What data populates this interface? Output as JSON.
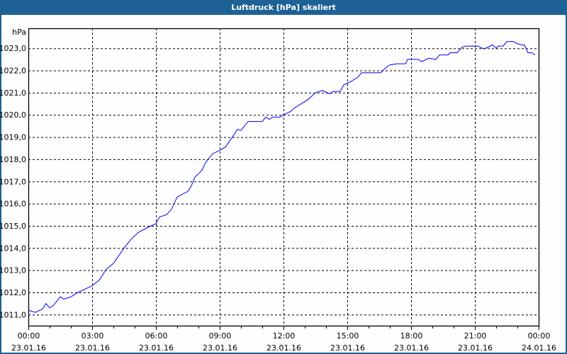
{
  "window": {
    "title": "Luftdruck [hPa] skaliert",
    "title_bg": "#1e6194"
  },
  "chart_data": {
    "type": "line",
    "title": "Luftdruck [hPa] skaliert",
    "ylabel": "hPa",
    "xlabel": "",
    "ylim": [
      1010.5,
      1023.9
    ],
    "yticks": [
      1011,
      1012,
      1013,
      1014,
      1015,
      1016,
      1017,
      1018,
      1019,
      1020,
      1021,
      1022,
      1023
    ],
    "ytick_labels": [
      "1011,0",
      "1012,0",
      "1013,0",
      "1014,0",
      "1015,0",
      "1016,0",
      "1017,0",
      "1018,0",
      "1019,0",
      "1020,0",
      "1021,0",
      "1022,0",
      "1023,0"
    ],
    "xlim": [
      "23.01.16 00:00",
      "24.01.16 00:00"
    ],
    "xticks": [
      {
        "time": "00:00",
        "date": "23.01.16"
      },
      {
        "time": "03:00",
        "date": "23.01.16"
      },
      {
        "time": "06:00",
        "date": "23.01.16"
      },
      {
        "time": "09:00",
        "date": "23.01.16"
      },
      {
        "time": "12:00",
        "date": "23.01.16"
      },
      {
        "time": "15:00",
        "date": "23.01.16"
      },
      {
        "time": "18:00",
        "date": "23.01.16"
      },
      {
        "time": "21:00",
        "date": "23.01.16"
      },
      {
        "time": "00:00",
        "date": "24.01.16"
      }
    ],
    "grid": true,
    "line_color": "#0000ff",
    "series": [
      {
        "x": [
          "00:00",
          "00:20",
          "00:40",
          "00:50",
          "01:00",
          "01:10",
          "01:30",
          "01:40",
          "02:00",
          "02:20",
          "02:40",
          "03:00",
          "03:20",
          "03:40",
          "04:00",
          "04:30",
          "04:50",
          "05:10",
          "05:40",
          "06:00",
          "06:10",
          "06:30",
          "06:44",
          "07:00",
          "07:30",
          "07:40",
          "07:50",
          "08:10",
          "08:20",
          "08:40",
          "09:00",
          "09:16",
          "09:40",
          "09:50",
          "10:00",
          "10:20",
          "11:00",
          "11:10",
          "11:20",
          "11:30",
          "11:50",
          "12:00",
          "12:20",
          "12:30",
          "12:50",
          "13:10",
          "13:20",
          "13:30",
          "13:50",
          "14:10",
          "14:20",
          "14:40",
          "14:50",
          "15:10",
          "15:30",
          "15:40",
          "16:00",
          "16:20",
          "16:34",
          "16:50",
          "17:00",
          "17:20",
          "17:44",
          "17:50",
          "18:20",
          "18:30",
          "18:50",
          "19:10",
          "19:20",
          "19:44",
          "19:50",
          "20:10",
          "20:24",
          "20:34",
          "21:10",
          "21:20",
          "21:30",
          "21:50",
          "22:00",
          "22:06",
          "22:20",
          "22:30",
          "22:50",
          "23:00",
          "23:14",
          "23:20",
          "23:30",
          "23:40",
          "23:50"
        ],
        "y": [
          1011.2,
          1011.1,
          1011.25,
          1011.5,
          1011.3,
          1011.4,
          1011.8,
          1011.7,
          1011.8,
          1012.0,
          1012.15,
          1012.3,
          1012.55,
          1013.05,
          1013.3,
          1014.0,
          1014.4,
          1014.7,
          1014.95,
          1015.1,
          1015.4,
          1015.5,
          1015.75,
          1016.3,
          1016.55,
          1016.8,
          1017.2,
          1017.5,
          1017.85,
          1018.25,
          1018.4,
          1018.55,
          1019.1,
          1019.35,
          1019.3,
          1019.7,
          1019.7,
          1019.9,
          1019.8,
          1019.9,
          1019.9,
          1020.0,
          1020.15,
          1020.3,
          1020.5,
          1020.7,
          1020.85,
          1021.0,
          1021.1,
          1020.95,
          1021.05,
          1021.05,
          1021.35,
          1021.5,
          1021.7,
          1021.9,
          1021.9,
          1021.9,
          1021.9,
          1022.15,
          1022.25,
          1022.3,
          1022.3,
          1022.5,
          1022.5,
          1022.4,
          1022.55,
          1022.5,
          1022.7,
          1022.7,
          1022.8,
          1022.8,
          1023.05,
          1023.1,
          1023.1,
          1023.0,
          1023.0,
          1023.15,
          1023.0,
          1023.1,
          1023.1,
          1023.3,
          1023.3,
          1023.2,
          1023.15,
          1023.15,
          1022.8,
          1022.8,
          1022.7
        ]
      }
    ]
  }
}
